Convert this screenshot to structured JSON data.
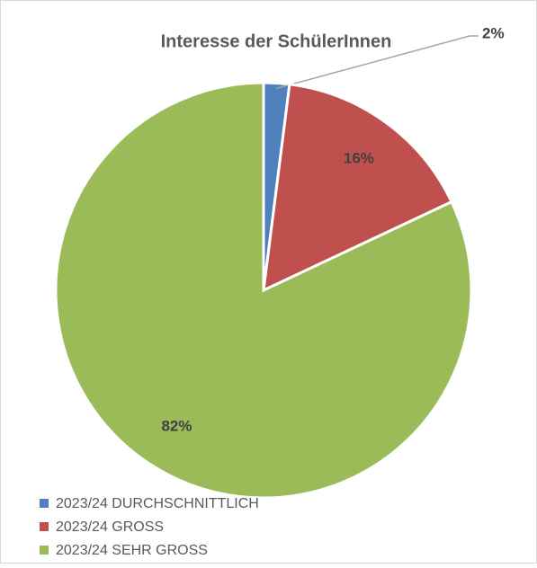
{
  "chart_data": {
    "type": "pie",
    "title": "Interesse der SchülerInnen",
    "categories": [
      "2023/24 DURCHSCHNITTLICH",
      "2023/24 GROSS",
      "2023/24 SEHR GROSS"
    ],
    "values": [
      2,
      16,
      82
    ],
    "value_labels": [
      "2%",
      "16%",
      "82%"
    ],
    "colors": [
      "#4f81bd",
      "#c0504d",
      "#9bbb59"
    ],
    "legend": "bottom-left"
  }
}
